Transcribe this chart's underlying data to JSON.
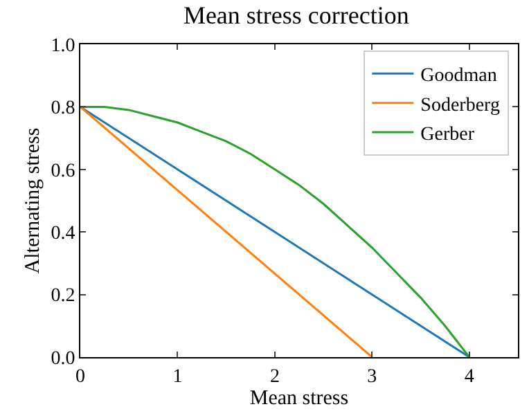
{
  "chart_data": {
    "type": "line",
    "title": "Mean stress correction",
    "xlabel": "Mean stress",
    "ylabel": "Alternating stress",
    "xlim": [
      0,
      4.5
    ],
    "xticks": [
      0,
      1,
      2,
      3,
      4
    ],
    "ylim": [
      0,
      1.0
    ],
    "yticks": [
      {
        "value": 0,
        "label": "0.0"
      },
      0.2,
      0.4,
      0.6,
      0.8,
      {
        "value": 1,
        "label": "1.0"
      }
    ],
    "legend": "top right",
    "series": [
      {
        "name": "Goodman",
        "color": "#1f77b4",
        "x": [
          0,
          4
        ],
        "values": [
          0.8,
          0
        ]
      },
      {
        "name": "Soderberg",
        "color": "#ff7f0e",
        "x": [
          0,
          3
        ],
        "values": [
          0.8,
          0
        ]
      },
      {
        "name": "Gerber",
        "color": "#2ca02c",
        "x": [
          0,
          0.25,
          0.5,
          0.75,
          1,
          1.25,
          1.5,
          1.75,
          2,
          2.25,
          2.5,
          2.75,
          3,
          3.25,
          3.5,
          3.75,
          4
        ],
        "values": [
          0.8,
          0.8,
          0.79,
          0.77,
          0.75,
          0.72,
          0.69,
          0.65,
          0.6,
          0.55,
          0.49,
          0.42,
          0.35,
          0.27,
          0.19,
          0.1,
          0
        ]
      }
    ]
  }
}
